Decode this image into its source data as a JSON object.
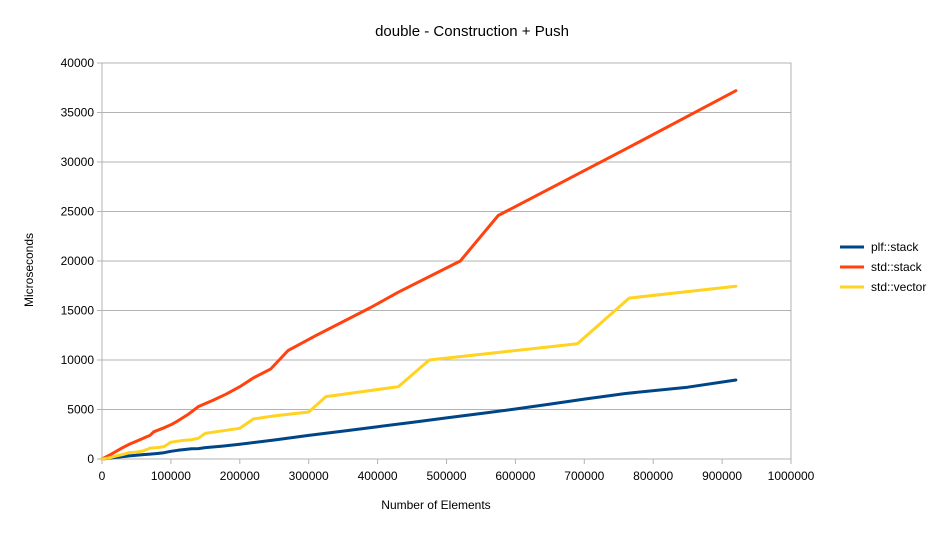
{
  "chart_data": {
    "type": "line",
    "title": "double - Construction + Push",
    "xlabel": "Number of Elements",
    "ylabel": "Microseconds",
    "xlim": [
      0,
      1000000
    ],
    "ylim": [
      0,
      40000
    ],
    "x_ticks": [
      0,
      100000,
      200000,
      300000,
      400000,
      500000,
      600000,
      700000,
      800000,
      900000,
      1000000
    ],
    "y_ticks": [
      0,
      5000,
      10000,
      15000,
      20000,
      25000,
      30000,
      35000,
      40000
    ],
    "x_tick_labels": [
      "0",
      "100000",
      "200000",
      "300000",
      "400000",
      "500000",
      "600000",
      "700000",
      "800000",
      "900000",
      "1000000"
    ],
    "y_tick_labels": [
      "0",
      "5000",
      "10000",
      "15000",
      "20000",
      "25000",
      "30000",
      "35000",
      "40000"
    ],
    "grid": "horizontal",
    "legend_position": "right",
    "series": [
      {
        "name": "plf::stack",
        "color": "#004586",
        "points": [
          [
            0,
            0
          ],
          [
            10000,
            80
          ],
          [
            20000,
            160
          ],
          [
            30000,
            240
          ],
          [
            40000,
            310
          ],
          [
            50000,
            380
          ],
          [
            60000,
            440
          ],
          [
            70000,
            500
          ],
          [
            80000,
            560
          ],
          [
            90000,
            640
          ],
          [
            100000,
            780
          ],
          [
            110000,
            880
          ],
          [
            120000,
            960
          ],
          [
            130000,
            1030
          ],
          [
            140000,
            1050
          ],
          [
            150000,
            1150
          ],
          [
            175000,
            1300
          ],
          [
            200000,
            1480
          ],
          [
            250000,
            1920
          ],
          [
            300000,
            2380
          ],
          [
            350000,
            2820
          ],
          [
            400000,
            3260
          ],
          [
            450000,
            3700
          ],
          [
            500000,
            4150
          ],
          [
            550000,
            4600
          ],
          [
            600000,
            5050
          ],
          [
            650000,
            5550
          ],
          [
            700000,
            6050
          ],
          [
            760000,
            6620
          ],
          [
            850000,
            7250
          ],
          [
            920000,
            7980
          ]
        ]
      },
      {
        "name": "std::stack",
        "color": "#FF420E",
        "points": [
          [
            0,
            0
          ],
          [
            10000,
            350
          ],
          [
            20000,
            750
          ],
          [
            30000,
            1150
          ],
          [
            40000,
            1500
          ],
          [
            50000,
            1800
          ],
          [
            60000,
            2100
          ],
          [
            70000,
            2400
          ],
          [
            75000,
            2750
          ],
          [
            90000,
            3150
          ],
          [
            100000,
            3450
          ],
          [
            110000,
            3850
          ],
          [
            125000,
            4500
          ],
          [
            140000,
            5300
          ],
          [
            160000,
            5900
          ],
          [
            180000,
            6550
          ],
          [
            200000,
            7300
          ],
          [
            220000,
            8200
          ],
          [
            245000,
            9100
          ],
          [
            270000,
            10950
          ],
          [
            310000,
            12450
          ],
          [
            390000,
            15300
          ],
          [
            430000,
            16850
          ],
          [
            520000,
            20000
          ],
          [
            575000,
            24600
          ],
          [
            760000,
            31300
          ],
          [
            920000,
            37200
          ]
        ]
      },
      {
        "name": "std::vector",
        "color": "#FFD320",
        "points": [
          [
            0,
            0
          ],
          [
            10000,
            100
          ],
          [
            20000,
            300
          ],
          [
            30000,
            450
          ],
          [
            40000,
            650
          ],
          [
            50000,
            700
          ],
          [
            60000,
            820
          ],
          [
            70000,
            1100
          ],
          [
            80000,
            1150
          ],
          [
            90000,
            1250
          ],
          [
            100000,
            1700
          ],
          [
            110000,
            1800
          ],
          [
            120000,
            1900
          ],
          [
            130000,
            1950
          ],
          [
            140000,
            2100
          ],
          [
            150000,
            2600
          ],
          [
            200000,
            3100
          ],
          [
            220000,
            4050
          ],
          [
            250000,
            4350
          ],
          [
            300000,
            4750
          ],
          [
            325000,
            6300
          ],
          [
            430000,
            7300
          ],
          [
            475000,
            10000
          ],
          [
            690000,
            11650
          ],
          [
            765000,
            16250
          ],
          [
            920000,
            17450
          ]
        ]
      }
    ]
  }
}
